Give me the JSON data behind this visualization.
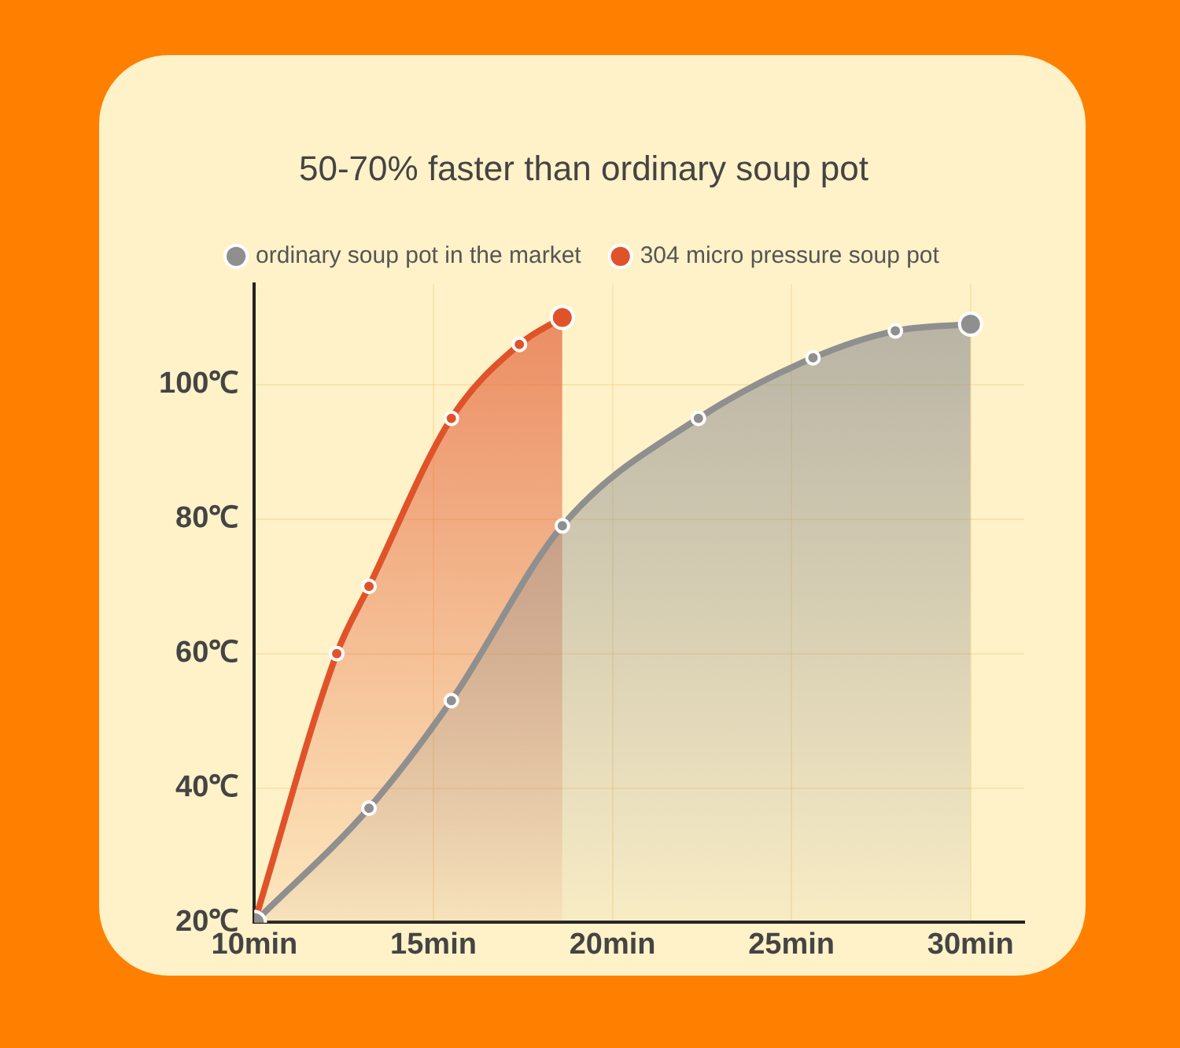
{
  "chart_data": {
    "type": "area",
    "title": "50-70% faster than ordinary soup pot",
    "series": [
      {
        "name": "304 micro pressure soup pot",
        "color": "#e0532a",
        "x": [
          10,
          12.3,
          13.2,
          15.5,
          17.4,
          18.6
        ],
        "values": [
          20,
          60,
          70,
          95,
          106,
          110
        ]
      },
      {
        "name": "ordinary soup pot in the market",
        "color": "#8f8f8f",
        "x": [
          10,
          13.2,
          15.5,
          18.6,
          22.4,
          25.6,
          27.9,
          30
        ],
        "values": [
          20,
          37,
          53,
          79,
          95,
          104,
          108,
          109
        ]
      }
    ],
    "xlim": [
      10,
      31.5
    ],
    "xticks": [
      {
        "value": 10,
        "label": "10min"
      },
      {
        "value": 15,
        "label": "15min"
      },
      {
        "value": 20,
        "label": "20min"
      },
      {
        "value": 25,
        "label": "25min"
      },
      {
        "value": 30,
        "label": "30min"
      }
    ],
    "ylim": [
      20,
      115
    ],
    "yticks": [
      {
        "value": 20,
        "label": "20℃"
      },
      {
        "value": 40,
        "label": "40℃"
      },
      {
        "value": 60,
        "label": "60℃"
      },
      {
        "value": 80,
        "label": "80℃"
      },
      {
        "value": 100,
        "label": "100℃"
      }
    ],
    "grid": true,
    "legend": "top",
    "marker": "circle",
    "line_style": "solid"
  }
}
